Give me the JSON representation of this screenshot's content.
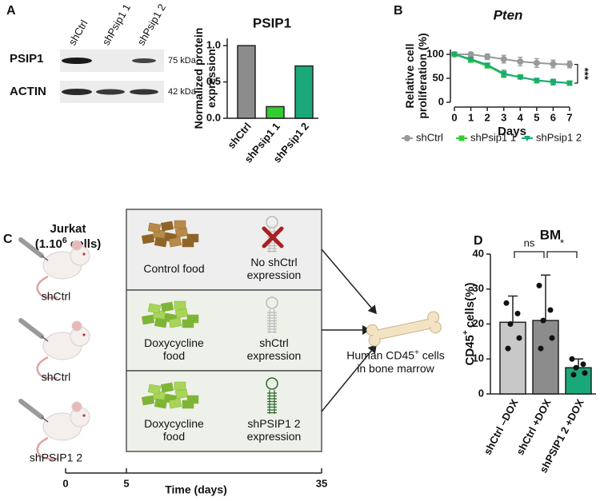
{
  "panels": [
    "A",
    "B",
    "C",
    "D"
  ],
  "blot": {
    "lanes": [
      "shCtrl",
      "shPsip1 1",
      "shPsip1 2"
    ],
    "rows": [
      {
        "name": "PSIP1",
        "size": "75 kDa"
      },
      {
        "name": "ACTIN",
        "size": "42 kDa"
      }
    ]
  },
  "chart_data": [
    {
      "type": "bar",
      "title": "PSIP1",
      "y_label": "Normalized protein expression",
      "categories": [
        "shCtrl",
        "shPsip1 1",
        "shPsip1 2"
      ],
      "values": [
        1.0,
        0.16,
        0.72
      ],
      "colors": [
        "#8c8c8c",
        "#33cc33",
        "#1aa87a"
      ],
      "ylim": [
        0,
        1.1
      ],
      "yticks": [
        {
          "value": 0,
          "label": "0.0"
        },
        {
          "value": 0.5,
          "label": "0.5"
        },
        {
          "value": 1,
          "label": "1.0"
        }
      ]
    },
    {
      "type": "line",
      "title": "Pten",
      "x_label": "Days",
      "y_label": "Relative cell proliferation (%)",
      "x": [
        0,
        1,
        2,
        3,
        4,
        5,
        6,
        7
      ],
      "xlim": [
        0,
        7
      ],
      "xticks": [
        0,
        1,
        2,
        3,
        4,
        5,
        6,
        7
      ],
      "ylim": [
        0,
        110
      ],
      "yticks": [
        0,
        50,
        100
      ],
      "series": [
        {
          "name": "shCtrl",
          "color": "#999999",
          "marker": "circle",
          "values": [
            100,
            100,
            95,
            90,
            85,
            82,
            80,
            79
          ],
          "errors": [
            3,
            4,
            6,
            8,
            9,
            9,
            8,
            7
          ]
        },
        {
          "name": "shPsip1 1",
          "color": "#33cc33",
          "marker": "square",
          "values": [
            100,
            88,
            76,
            58,
            53,
            45,
            43,
            40
          ],
          "errors": [
            2,
            3,
            3,
            6,
            3,
            3,
            5,
            3
          ]
        },
        {
          "name": "shPsip1 2",
          "color": "#1aa87a",
          "marker": "triangle",
          "values": [
            100,
            90,
            78,
            60,
            52,
            46,
            42,
            40
          ],
          "errors": [
            2,
            3,
            3,
            7,
            3,
            4,
            6,
            3
          ]
        }
      ],
      "annotation": "***",
      "legend": "bottom"
    },
    {
      "type": "bar",
      "title": "BM",
      "y_label": "CD45",
      "y_label_sup": "+",
      "y_label_end": "cells(%)",
      "categories": [
        "shCtrl –DOX",
        "shCtrl +DOX",
        "shPSIP1 2 +DOX"
      ],
      "values": [
        20.5,
        21,
        7.5
      ],
      "errors": [
        7.5,
        13,
        2.5
      ],
      "points": [
        [
          26,
          23,
          20,
          16,
          13
        ],
        [
          31,
          24,
          21,
          16,
          13
        ],
        [
          10,
          8.5,
          7.5,
          6,
          5.5
        ]
      ],
      "colors": [
        "#c8c8c8",
        "#8c8c8c",
        "#1aa87a"
      ],
      "ylim": [
        0,
        40
      ],
      "yticks": [
        0,
        10,
        20,
        30,
        40
      ],
      "comparisons": [
        {
          "between": [
            0,
            1
          ],
          "label": "ns"
        },
        {
          "between": [
            1,
            2
          ],
          "label": "*"
        }
      ]
    }
  ],
  "diagram": {
    "injection": {
      "line1": "Jurkat",
      "line2": "(1.10",
      "sup": "6",
      "line2_end": "cells)"
    },
    "groups": [
      {
        "mouse": "shCtrl",
        "food": "Control food",
        "expression": "No shCtrl expression"
      },
      {
        "mouse": "shCtrl",
        "food": "Doxycycline food",
        "expression": "shCtrl expression"
      },
      {
        "mouse": "shPSIP1 2",
        "food": "Doxycycline food",
        "expression": "shPSIP1 2 expression"
      }
    ],
    "outcome": {
      "text1": "Human CD45",
      "sup": "+",
      "text2": "cells in bone marrow"
    },
    "timeline": {
      "ticks": [
        "0",
        "5",
        "35"
      ],
      "label": "Time (days)"
    }
  }
}
